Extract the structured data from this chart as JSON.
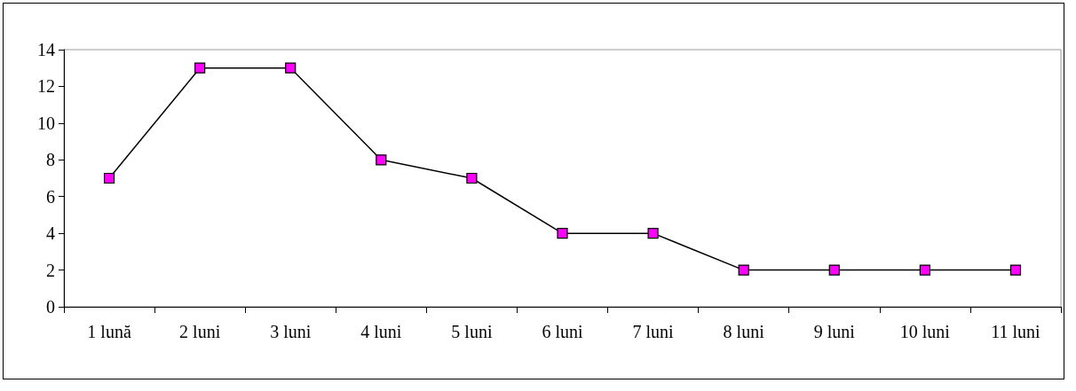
{
  "chart_data": {
    "type": "line",
    "categories": [
      "1 lună",
      "2 luni",
      "3 luni",
      "4 luni",
      "5 luni",
      "6 luni",
      "7 luni",
      "8 luni",
      "9 luni",
      "10 luni",
      "11 luni"
    ],
    "series": [
      {
        "color": "#ff00ff",
        "values": [
          7,
          13,
          13,
          8,
          7,
          4,
          4,
          2,
          2,
          2,
          2
        ]
      }
    ],
    "ylim": [
      0,
      14
    ],
    "yticks": [
      0,
      2,
      4,
      6,
      8,
      10,
      12,
      14
    ],
    "grid": false,
    "marker": "square",
    "line_style": "solid"
  }
}
